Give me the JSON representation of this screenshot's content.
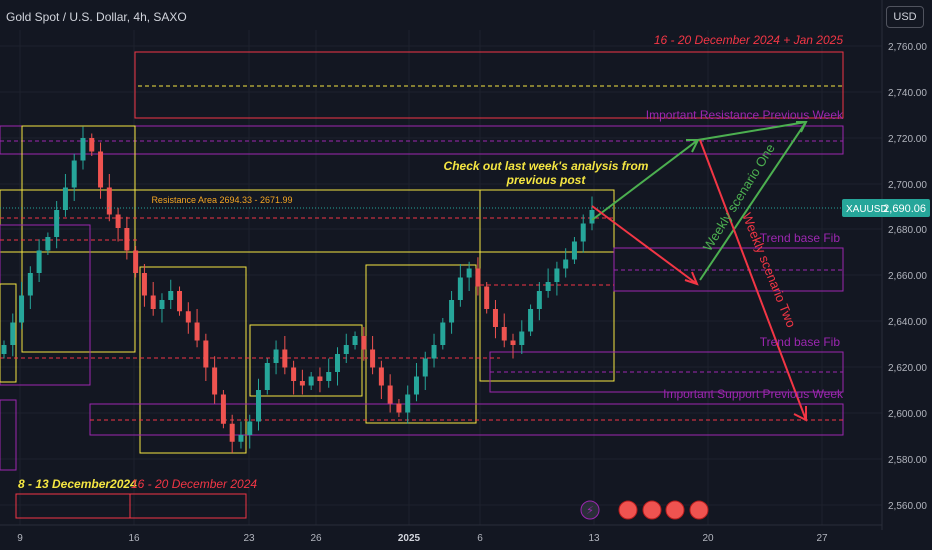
{
  "header": {
    "title": "Gold Spot / U.S. Dollar, 4h, SAXO",
    "currency_button": "USD"
  },
  "price_scale": {
    "ticks": [
      "2,760.00",
      "2,740.00",
      "2,720.00",
      "2,700.00",
      "2,680.00",
      "2,660.00",
      "2,640.00",
      "2,620.00",
      "2,600.00",
      "2,580.00",
      "2,560.00"
    ]
  },
  "time_scale": {
    "ticks": [
      "9",
      "16",
      "23",
      "26",
      "2025",
      "6",
      "13",
      "20",
      "27"
    ]
  },
  "price_badge": {
    "symbol": "XAUUSD",
    "value": "2,690.06"
  },
  "annotations": {
    "zone_top": "16 - 20 December 2024 + Jan 2025",
    "resistance_prev": "Important Resistance Previous Week",
    "trend_fib_1": "Trend base Fib",
    "trend_fib_2": "Trend base Fib",
    "support_prev": "Important Support Previous Week",
    "check_out_line1": "Check out last week's analysis from",
    "check_out_line2": "previous post",
    "resistance_area": "Resistance Area 2694.33 - 2671.99",
    "scenario_one": "Weekly scenario One",
    "scenario_two": "Weekly scenario Two",
    "week_label_1": "8 - 13 December2024",
    "week_label_2": "16 - 20 December 2024"
  },
  "colors": {
    "background": "#131722",
    "up": "#26a69a",
    "down": "#ef5350",
    "yellow": "#f5e642",
    "red": "#f23645",
    "purple": "#9c27b0",
    "green": "#4caf50",
    "blue": "#2962ff"
  },
  "chart_data": {
    "type": "candlestick",
    "title": "Gold Spot / U.S. Dollar, 4h, SAXO",
    "ylim": [
      2550,
      2770
    ],
    "last_price": 2690.06,
    "close_series": [
      2630,
      2640,
      2652,
      2662,
      2672,
      2678,
      2690,
      2700,
      2712,
      2722,
      2716,
      2700,
      2688,
      2682,
      2672,
      2662,
      2652,
      2646,
      2650,
      2654,
      2645,
      2640,
      2632,
      2620,
      2608,
      2595,
      2587,
      2590,
      2596,
      2610,
      2622,
      2628,
      2620,
      2614,
      2612,
      2616,
      2614,
      2618,
      2626,
      2630,
      2634,
      2628,
      2620,
      2612,
      2604,
      2600,
      2608,
      2616,
      2624,
      2630,
      2640,
      2650,
      2660,
      2664,
      2656,
      2646,
      2638,
      2632,
      2630,
      2636,
      2646,
      2654,
      2658,
      2664,
      2668,
      2676,
      2684,
      2690
    ]
  }
}
